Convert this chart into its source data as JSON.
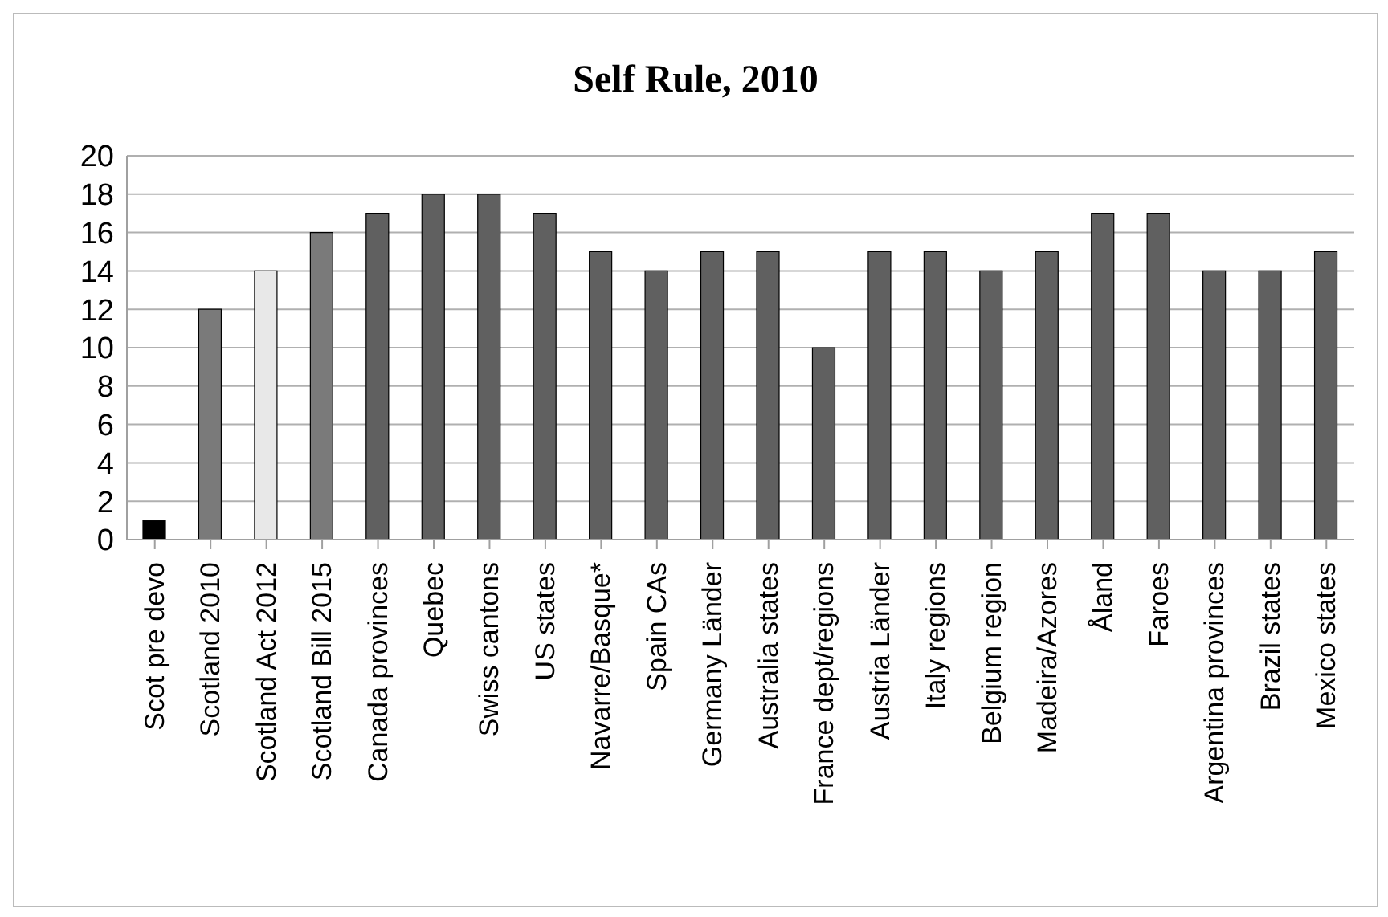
{
  "chart_data": {
    "type": "bar",
    "title": "Self Rule, 2010",
    "categories": [
      "Scot pre devo",
      "Scotland 2010",
      "Scotland Act 2012",
      "Scotland Bill 2015",
      "Canada provinces",
      "Quebec",
      "Swiss cantons",
      "US states",
      "Navarre/Basque*",
      "Spain CAs",
      "Germany Länder",
      "Australia states",
      "France dept/regions",
      "Austria Länder",
      "Italy regions",
      "Belgium region",
      "Madeira/Azores",
      "Åland",
      "Faroes",
      "Argentina provinces",
      "Brazil states",
      "Mexico states"
    ],
    "values": [
      1,
      12,
      14,
      16,
      17,
      18,
      18,
      17,
      15,
      14,
      15,
      15,
      10,
      15,
      15,
      14,
      15,
      17,
      17,
      14,
      14,
      15
    ],
    "colors": [
      "#000000",
      "#7a7a7a",
      "#e8e8e8",
      "#7a7a7a",
      "#606060",
      "#606060",
      "#606060",
      "#606060",
      "#606060",
      "#606060",
      "#606060",
      "#606060",
      "#606060",
      "#606060",
      "#606060",
      "#606060",
      "#606060",
      "#606060",
      "#606060",
      "#606060",
      "#606060",
      "#606060"
    ],
    "ylim": [
      0,
      20
    ],
    "yticks": [
      0,
      2,
      4,
      6,
      8,
      10,
      12,
      14,
      16,
      18,
      20
    ],
    "grid": "y",
    "legend": false
  }
}
